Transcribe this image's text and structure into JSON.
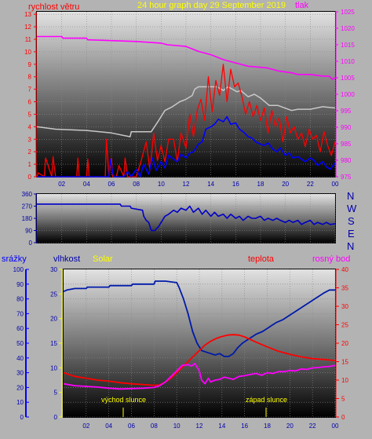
{
  "header": {
    "wind_label": "rychlost větru",
    "title": "24 hour graph day   29 September 2019",
    "pressure_label": "tlak"
  },
  "middle": {
    "compass": [
      "N",
      "W",
      "S",
      "E",
      "N"
    ]
  },
  "bottom_header": {
    "rain_label": "srážky",
    "humidity_label": "vlhkost",
    "solar_label": "Solar",
    "temp_label": "teplota",
    "dew_label": "rosný bod"
  },
  "annotations": {
    "sunrise": "východ slunce",
    "sunset": "západ slunce"
  },
  "colors": {
    "wind": "#ff0000",
    "wind_avg": "#0000ff",
    "gust_baseline": "#c8c8c8",
    "pressure": "#ff00ff",
    "direction": "#0000c8",
    "humidity": "#001aaa",
    "temperature": "#ff0000",
    "dew_point": "#ff00ff",
    "solar": "#ffff00",
    "rain_axis": "#0000ff"
  },
  "chart_data": [
    {
      "type": "line",
      "name": "wind-pressure",
      "x_ticks": [
        "02",
        "04",
        "06",
        "08",
        "10",
        "12",
        "14",
        "16",
        "18",
        "20",
        "22",
        "00"
      ],
      "y_left_ticks": [
        "0",
        "1",
        "2",
        "3",
        "4",
        "5",
        "6",
        "7",
        "8",
        "9",
        "10",
        "11",
        "12",
        "13"
      ],
      "y_right_ticks": [
        "975",
        "980",
        "985",
        "990",
        "995",
        "1000",
        "1005",
        "1010",
        "1015",
        "1020",
        "1025"
      ],
      "ylim_left": [
        0,
        13.2
      ],
      "ylim_right": [
        975,
        1025
      ],
      "xlim": [
        0,
        24
      ],
      "series": [
        {
          "role": "wind",
          "axis": "left",
          "x": [
            0,
            0.1,
            0.6,
            0.7,
            1.2,
            1.3,
            1.5,
            1.6,
            2.0,
            3.2,
            3.3,
            3.4,
            4.0,
            4.1,
            4.2,
            5.5,
            5.6,
            5.8,
            6.0,
            6.1,
            6.4,
            6.6,
            7.0,
            7.1,
            7.3,
            7.6,
            8.0,
            8.4,
            8.8,
            9.1,
            9.4,
            9.7,
            10.0,
            10.3,
            10.6,
            11.0,
            11.3,
            11.6,
            12.0,
            12.3,
            12.6,
            12.9,
            13.2,
            13.5,
            13.8,
            14.1,
            14.4,
            14.7,
            15.0,
            15.3,
            15.6,
            15.9,
            16.2,
            16.5,
            16.8,
            17.1,
            17.4,
            17.7,
            18.0,
            18.3,
            18.6,
            18.9,
            19.2,
            19.5,
            19.8,
            20.1,
            20.4,
            20.7,
            21.0,
            21.3,
            21.6,
            21.9,
            22.2,
            22.5,
            22.8,
            23.1,
            23.4,
            23.7,
            24.0
          ],
          "values": [
            0,
            0.3,
            0,
            1.5,
            0,
            1.6,
            0,
            0,
            0,
            0,
            1.5,
            0,
            0,
            1.4,
            0,
            0,
            3.0,
            0,
            1.5,
            0,
            0,
            0.9,
            0,
            1.5,
            0,
            0,
            0,
            1.3,
            2.8,
            0.5,
            3.5,
            1.3,
            2.5,
            1.2,
            3.0,
            3.0,
            1.2,
            3.5,
            2.3,
            5.0,
            3.2,
            5.3,
            6.2,
            4.5,
            8.0,
            5.2,
            7.7,
            6.5,
            9.0,
            6.0,
            8.6,
            7.2,
            7.5,
            6.4,
            5.0,
            6.0,
            4.8,
            5.7,
            4.5,
            5.5,
            3.5,
            5.3,
            4.0,
            4.7,
            2.8,
            4.8,
            3.5,
            4.0,
            3.0,
            3.5,
            2.4,
            3.8,
            3.0,
            3.3,
            2.0,
            3.6,
            2.5,
            1.7,
            2.8
          ]
        },
        {
          "role": "wind_avg",
          "axis": "left",
          "x": [
            0,
            5.8,
            5.9,
            6.1,
            6.2,
            7.0,
            7.3,
            7.6,
            8.0,
            8.3,
            8.6,
            9.0,
            9.3,
            9.6,
            10.0,
            10.3,
            10.6,
            11.0,
            11.3,
            11.6,
            12.0,
            12.3,
            12.6,
            13.0,
            13.3,
            13.6,
            14.0,
            14.3,
            14.6,
            15.0,
            15.3,
            15.6,
            16.0,
            16.3,
            16.6,
            17.0,
            17.3,
            17.6,
            18.0,
            18.3,
            18.6,
            19.0,
            19.3,
            19.6,
            20.0,
            20.3,
            20.6,
            21.0,
            21.3,
            21.6,
            22.0,
            22.3,
            22.6,
            23.0,
            23.3,
            23.6,
            24.0
          ],
          "values": [
            0,
            0,
            1.4,
            0.3,
            0,
            0,
            0.4,
            0,
            0.6,
            0,
            1.0,
            0.2,
            1.5,
            0.5,
            1.2,
            0.7,
            1.7,
            1.4,
            1.2,
            1.8,
            1.5,
            1.9,
            2.0,
            2.6,
            2.8,
            3.8,
            4.0,
            4.2,
            4.6,
            4.4,
            4.8,
            4.2,
            4.3,
            3.8,
            3.6,
            3.2,
            3.1,
            2.8,
            2.6,
            2.5,
            2.7,
            2.2,
            2.0,
            2.3,
            1.7,
            1.9,
            1.5,
            1.6,
            1.4,
            1.2,
            1.5,
            1.3,
            0.9,
            1.2,
            0.8,
            0.6,
            1.1
          ]
        },
        {
          "role": "gust_baseline",
          "axis": "left",
          "x": [
            0,
            1.5,
            4.0,
            6.0,
            7.5,
            7.6,
            9.2,
            9.8,
            10.3,
            10.9,
            11.5,
            12.0,
            12.5,
            12.7,
            13.0,
            14.5,
            15.0,
            15.4,
            16.1,
            16.4,
            17.0,
            17.5,
            18.0,
            18.7,
            19.4,
            20.5,
            21.0,
            22.0,
            23.0,
            24.0
          ],
          "values": [
            4.0,
            3.8,
            3.7,
            3.5,
            3.2,
            3.6,
            3.6,
            4.5,
            5.3,
            5.6,
            6.0,
            6.2,
            6.5,
            7.0,
            7.2,
            7.2,
            6.9,
            7.2,
            6.8,
            6.9,
            6.4,
            6.6,
            6.3,
            5.7,
            5.7,
            5.3,
            5.4,
            5.4,
            5.6,
            5.5
          ]
        },
        {
          "role": "pressure",
          "axis": "right",
          "x": [
            0,
            2.0,
            2.1,
            4.0,
            4.1,
            8.0,
            10.0,
            10.5,
            12.0,
            13.0,
            14.0,
            15.0,
            16.0,
            17.0,
            18.5,
            19.5,
            20.5,
            21.0,
            22.0,
            23.0,
            23.5,
            23.8,
            24.0
          ],
          "values": [
            1017.5,
            1017.5,
            1017,
            1017,
            1016.5,
            1016,
            1015.5,
            1015,
            1014.5,
            1013,
            1012,
            1010.5,
            1009.5,
            1008.5,
            1008,
            1007,
            1006.5,
            1006,
            1006,
            1005.5,
            1005.5,
            1004.5,
            1005
          ]
        }
      ]
    },
    {
      "type": "line",
      "name": "wind-direction",
      "x_ticks": [],
      "y_ticks": [
        "0",
        "90",
        "180",
        "270",
        "360"
      ],
      "ylim": [
        0,
        360
      ],
      "xlim": [
        0,
        24
      ],
      "series": [
        {
          "role": "direction",
          "axis": "left",
          "x": [
            0,
            6.7,
            6.8,
            7.5,
            7.6,
            8.5,
            8.6,
            8.8,
            9.0,
            9.2,
            9.5,
            9.8,
            10.0,
            10.3,
            10.6,
            11.0,
            11.3,
            11.6,
            12.0,
            12.3,
            12.6,
            13.0,
            13.3,
            13.6,
            14.0,
            14.3,
            14.6,
            15.0,
            15.3,
            15.6,
            16.0,
            16.3,
            16.6,
            17.0,
            17.3,
            17.6,
            18.0,
            18.3,
            18.6,
            19.0,
            19.3,
            19.6,
            20.0,
            20.3,
            20.6,
            21.0,
            21.3,
            21.6,
            22.0,
            22.3,
            22.6,
            23.0,
            23.3,
            23.6,
            24.0
          ],
          "values": [
            285,
            285,
            270,
            270,
            255,
            240,
            195,
            165,
            150,
            90,
            90,
            120,
            150,
            195,
            210,
            240,
            225,
            255,
            240,
            270,
            225,
            255,
            210,
            240,
            195,
            225,
            195,
            210,
            180,
            210,
            180,
            195,
            165,
            195,
            180,
            180,
            195,
            165,
            180,
            165,
            180,
            165,
            150,
            165,
            150,
            165,
            135,
            150,
            165,
            135,
            150,
            135,
            150,
            135,
            140
          ]
        }
      ]
    },
    {
      "type": "line",
      "name": "humidity-temperature",
      "x_ticks": [
        "02",
        "04",
        "06",
        "08",
        "10",
        "12",
        "14",
        "16",
        "18",
        "20",
        "22",
        "00"
      ],
      "y_rain_ticks": [
        "0",
        "10",
        "20",
        "30",
        "40",
        "50",
        "60",
        "70",
        "80",
        "90",
        "100"
      ],
      "y_solar_ticks": [
        "0",
        "5",
        "10",
        "15",
        "20",
        "25",
        "30"
      ],
      "y_temp_ticks": [
        "0",
        "5",
        "10",
        "15",
        "20",
        "25",
        "30",
        "35",
        "40"
      ],
      "ylim_humidity": [
        0,
        100
      ],
      "ylim_temp": [
        0,
        40
      ],
      "xlim": [
        0,
        24
      ],
      "series": [
        {
          "role": "humidity",
          "axis": "rain",
          "x": [
            0,
            0.3,
            1.0,
            2.0,
            2.1,
            4.0,
            4.1,
            6.0,
            6.1,
            8.0,
            8.1,
            9.0,
            10.0,
            10.2,
            10.6,
            11.0,
            11.4,
            11.8,
            12.2,
            12.6,
            13.0,
            13.4,
            13.8,
            14.2,
            14.6,
            15.0,
            15.4,
            15.8,
            16.2,
            16.6,
            17.0,
            17.6,
            18.0,
            18.4,
            18.8,
            19.4,
            20.0,
            20.6,
            21.2,
            21.8,
            22.4,
            23.0,
            23.5,
            24.0
          ],
          "values": [
            85,
            86,
            87,
            87,
            88,
            88,
            89,
            89,
            90,
            90,
            92,
            92,
            91,
            88,
            80,
            70,
            58,
            50,
            45,
            44,
            43,
            42,
            43,
            41,
            41,
            43,
            47,
            50,
            52,
            54,
            56,
            58,
            60,
            62,
            64,
            66,
            69,
            72,
            75,
            78,
            81,
            84,
            86,
            86
          ]
        },
        {
          "role": "temperature",
          "axis": "temp",
          "x": [
            0,
            1,
            2,
            3,
            4,
            5,
            6,
            7,
            8,
            8.5,
            9,
            9.5,
            10,
            10.5,
            11,
            11.5,
            12,
            12.5,
            13,
            13.5,
            14,
            14.5,
            15,
            15.5,
            16,
            17,
            18,
            19,
            20,
            21,
            22,
            23,
            24
          ],
          "values": [
            12,
            11,
            10.5,
            10,
            9.7,
            9.3,
            9,
            8.8,
            8.6,
            8.7,
            9.5,
            10.5,
            12,
            13.5,
            15,
            16.5,
            18,
            19.5,
            20.5,
            21.3,
            21.8,
            22.2,
            22.3,
            22.2,
            21.7,
            20.3,
            19,
            17.8,
            17,
            16.3,
            15.8,
            15.6,
            15.3
          ]
        },
        {
          "role": "dew_point",
          "axis": "temp",
          "x": [
            0,
            1,
            2,
            3,
            4,
            5,
            6,
            7,
            8,
            8.5,
            9,
            9.5,
            10,
            10.5,
            11,
            11.3,
            11.6,
            12,
            12.2,
            12.5,
            12.8,
            13,
            13.4,
            13.8,
            14.2,
            14.6,
            15,
            15.5,
            16,
            16.5,
            17,
            17.5,
            18,
            18.5,
            19,
            19.5,
            20,
            20.5,
            21,
            21.5,
            22,
            22.5,
            23,
            23.5,
            24
          ],
          "values": [
            9,
            8.5,
            8.3,
            8.1,
            7.8,
            7.6,
            7.7,
            7.8,
            8,
            8.5,
            9.5,
            11,
            12.5,
            14,
            14.2,
            13.8,
            14.5,
            12.5,
            10,
            9,
            10.5,
            9.5,
            10,
            10.2,
            10.8,
            10.5,
            10.2,
            11,
            11.2,
            11.5,
            11.8,
            11.3,
            12,
            11.8,
            12.3,
            12.3,
            12.6,
            12.5,
            13,
            12.9,
            13.3,
            13.4,
            13.6,
            13.7,
            14
          ]
        },
        {
          "role": "solar",
          "axis": "solar",
          "x": [
            0,
            24
          ],
          "values": [
            0,
            0
          ]
        }
      ]
    }
  ]
}
